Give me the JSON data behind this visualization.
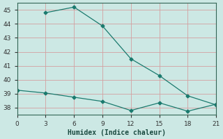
{
  "xlabel": "Humidex (Indice chaleur)",
  "line1_x": [
    3,
    6,
    9,
    12,
    15,
    18,
    21
  ],
  "line1_y": [
    44.8,
    45.2,
    43.85,
    41.5,
    40.3,
    38.85,
    38.2
  ],
  "line2_x": [
    0,
    3,
    6,
    9,
    12,
    15,
    18,
    21
  ],
  "line2_y": [
    39.25,
    39.05,
    38.75,
    38.45,
    37.8,
    38.35,
    37.75,
    38.25
  ],
  "line_color": "#1a7a6e",
  "bg_color": "#cce8e4",
  "grid_color": "#b8d4d0",
  "spine_color": "#336655",
  "xlim": [
    0,
    21
  ],
  "ylim": [
    37.5,
    45.5
  ],
  "xticks": [
    0,
    3,
    6,
    9,
    12,
    15,
    18,
    21
  ],
  "yticks": [
    38,
    39,
    40,
    41,
    42,
    43,
    44,
    45
  ]
}
